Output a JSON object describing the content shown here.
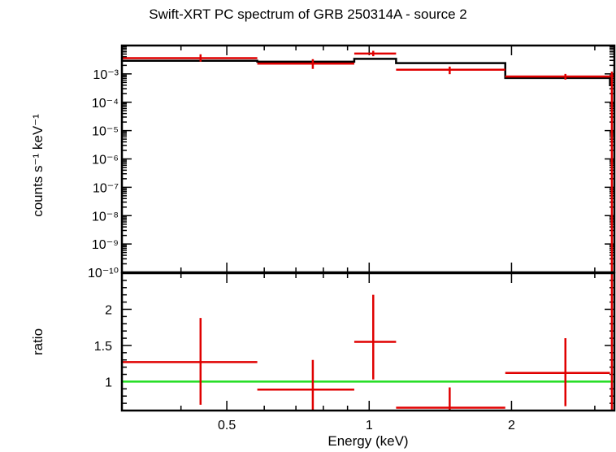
{
  "title": "Swift-XRT PC spectrum of GRB 250314A - source 2",
  "colors": {
    "data": "#e00000",
    "model": "#000000",
    "ratio_line": "#22dd22",
    "frame": "#000000"
  },
  "chart_data": [
    {
      "type": "step",
      "ylabel": "counts s⁻¹ keV⁻¹",
      "xscale": "log",
      "yscale": "log",
      "xlim": [
        0.3,
        3.3
      ],
      "ylim": [
        1e-10,
        0.01
      ],
      "yticks": [
        {
          "value": 0.001,
          "label": "10⁻³"
        },
        {
          "value": 0.0001,
          "label": "10⁻⁴"
        },
        {
          "value": 1e-05,
          "label": "10⁻⁵"
        },
        {
          "value": 1e-06,
          "label": "10⁻⁶"
        },
        {
          "value": 1e-07,
          "label": "10⁻⁷"
        },
        {
          "value": 1e-08,
          "label": "10⁻⁸"
        },
        {
          "value": 1e-09,
          "label": "10⁻⁹"
        },
        {
          "value": 1e-10,
          "label": "10⁻¹⁰"
        }
      ],
      "series": [
        {
          "kind": "data",
          "points": [
            {
              "xlo": 0.3,
              "x": 0.44,
              "xhi": 0.58,
              "y": 0.0036,
              "ylo": 0.0027,
              "yhi": 0.0049
            },
            {
              "xlo": 0.58,
              "x": 0.76,
              "xhi": 0.93,
              "y": 0.0023,
              "ylo": 0.0015,
              "yhi": 0.0033
            },
            {
              "xlo": 0.93,
              "x": 1.02,
              "xhi": 1.14,
              "y": 0.0052,
              "ylo": 0.0042,
              "yhi": 0.0065
            },
            {
              "xlo": 1.14,
              "x": 1.48,
              "xhi": 1.94,
              "y": 0.0014,
              "ylo": 0.00098,
              "yhi": 0.0018
            },
            {
              "xlo": 1.94,
              "x": 2.6,
              "xhi": 3.23,
              "y": 0.00081,
              "ylo": 0.00063,
              "yhi": 0.001
            },
            {
              "xlo": 3.23,
              "x": 3.26,
              "xhi": 3.3,
              "y": 0.00085,
              "ylo": 1e-10,
              "yhi": 0.0012
            }
          ]
        },
        {
          "kind": "model",
          "steps": [
            {
              "xlo": 0.3,
              "xhi": 0.58,
              "y": 0.0029
            },
            {
              "xlo": 0.58,
              "xhi": 0.93,
              "y": 0.0027
            },
            {
              "xlo": 0.93,
              "xhi": 1.14,
              "y": 0.0034
            },
            {
              "xlo": 1.14,
              "xhi": 1.94,
              "y": 0.0024
            },
            {
              "xlo": 1.94,
              "xhi": 3.23,
              "y": 0.00072
            },
            {
              "xlo": 3.23,
              "xhi": 3.3,
              "y": 0.0004
            }
          ]
        }
      ]
    },
    {
      "type": "scatter",
      "ylabel": "ratio",
      "xlabel": "Energy (keV)",
      "xscale": "log",
      "xlim": [
        0.3,
        3.3
      ],
      "ylim": [
        0.6,
        2.5
      ],
      "yticks": [
        {
          "value": 1,
          "label": "1"
        },
        {
          "value": 1.5,
          "label": "1.5"
        },
        {
          "value": 2,
          "label": "2"
        }
      ],
      "xticks": [
        {
          "value": 0.5,
          "label": "0.5"
        },
        {
          "value": 1,
          "label": "1"
        },
        {
          "value": 2,
          "label": "2"
        }
      ],
      "reference_line": 1,
      "points": [
        {
          "xlo": 0.3,
          "x": 0.44,
          "xhi": 0.58,
          "y": 1.27,
          "ylo": 0.68,
          "yhi": 1.88
        },
        {
          "xlo": 0.58,
          "x": 0.76,
          "xhi": 0.93,
          "y": 0.89,
          "ylo": 0.58,
          "yhi": 1.3
        },
        {
          "xlo": 0.93,
          "x": 1.02,
          "xhi": 1.14,
          "y": 1.55,
          "ylo": 1.03,
          "yhi": 2.2
        },
        {
          "xlo": 1.14,
          "x": 1.48,
          "xhi": 1.94,
          "y": 0.64,
          "ylo": 0.38,
          "yhi": 0.92
        },
        {
          "xlo": 1.94,
          "x": 2.6,
          "xhi": 3.23,
          "y": 1.12,
          "ylo": 0.66,
          "yhi": 1.6
        },
        {
          "xlo": 3.23,
          "x": 3.26,
          "xhi": 3.3,
          "y": 2.73,
          "ylo": 0.0,
          "yhi": 5.0
        }
      ]
    }
  ]
}
